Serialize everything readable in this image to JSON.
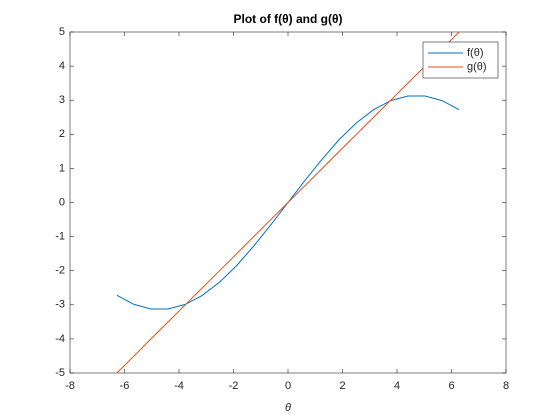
{
  "chart_data": {
    "type": "line",
    "title": "Plot of f(θ) and g(θ)",
    "x_label": "θ",
    "x": [
      -6.28,
      -5.65,
      -5.03,
      -4.4,
      -3.77,
      -3.14,
      -2.51,
      -1.88,
      -1.26,
      -0.63,
      0,
      0.63,
      1.26,
      1.88,
      2.51,
      3.14,
      3.77,
      4.4,
      5.03,
      5.65,
      6.28
    ],
    "series": [
      {
        "name": "f(θ)",
        "color": "#0072bd",
        "values": [
          -2.721,
          -2.988,
          -3.124,
          -3.124,
          -2.988,
          -2.721,
          -2.335,
          -1.847,
          -1.278,
          -0.653,
          0,
          0.653,
          1.278,
          1.847,
          2.335,
          2.721,
          2.988,
          3.124,
          3.124,
          2.988,
          2.721
        ]
      },
      {
        "name": "g(θ)",
        "color": "#d95319",
        "values": [
          -5.0,
          -4.5,
          -4.0,
          -3.5,
          -3.0,
          -2.5,
          -2.0,
          -1.5,
          -1.0,
          -0.5,
          0,
          0.5,
          1.0,
          1.5,
          2.0,
          2.5,
          3.0,
          3.5,
          4.0,
          4.5,
          5.0
        ]
      }
    ],
    "xlim": [
      -8,
      8
    ],
    "xticks": [
      -8,
      -6,
      -4,
      -2,
      0,
      2,
      4,
      6,
      8
    ],
    "ylim": [
      -5,
      5
    ],
    "yticks": [
      -5,
      -4,
      -3,
      -2,
      -1,
      0,
      1,
      2,
      3,
      4,
      5
    ],
    "legend": "upper right"
  }
}
